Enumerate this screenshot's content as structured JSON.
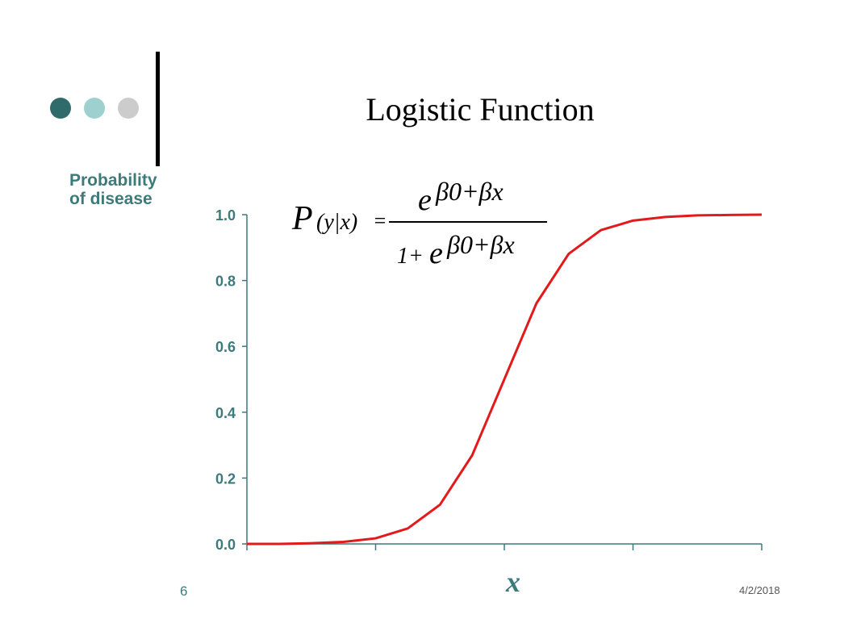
{
  "slide": {
    "title": "Logistic Function",
    "page_number": "6",
    "date": "4/2/2018",
    "decor_colors": [
      "#2f6b6b",
      "#9fd0d0",
      "#cccccc"
    ]
  },
  "formula": {
    "lhs_P": "P",
    "lhs_args": "(y|x)",
    "equals": "=",
    "num_base": "e",
    "exponent": "β0+βx",
    "den_one": "1+",
    "den_base": "e",
    "den_exponent": "β0+βx"
  },
  "chart_data": {
    "type": "line",
    "ylabel_line1": "Probability",
    "ylabel_line2": "of disease",
    "xlabel": "x",
    "ylim": [
      0,
      1
    ],
    "yticks": [
      "0.0",
      "0.2",
      "0.4",
      "0.6",
      "0.8",
      "1.0"
    ],
    "ytick_values": [
      0,
      0.2,
      0.4,
      0.6,
      0.8,
      1.0
    ],
    "xlim": [
      0,
      16
    ],
    "xtick_values": [
      0,
      4,
      8,
      12,
      16
    ],
    "line_color": "#e31a1c",
    "axis_color": "#3d7a7a",
    "series": [
      {
        "x": [
          0,
          1,
          2,
          3,
          4,
          5,
          6,
          7,
          8,
          9,
          10,
          11,
          12,
          13,
          14,
          15,
          16
        ],
        "values": [
          0.0,
          0.0,
          0.002,
          0.006,
          0.017,
          0.047,
          0.119,
          0.269,
          0.5,
          0.731,
          0.881,
          0.953,
          0.982,
          0.993,
          0.998,
          0.999,
          1.0
        ]
      }
    ]
  }
}
